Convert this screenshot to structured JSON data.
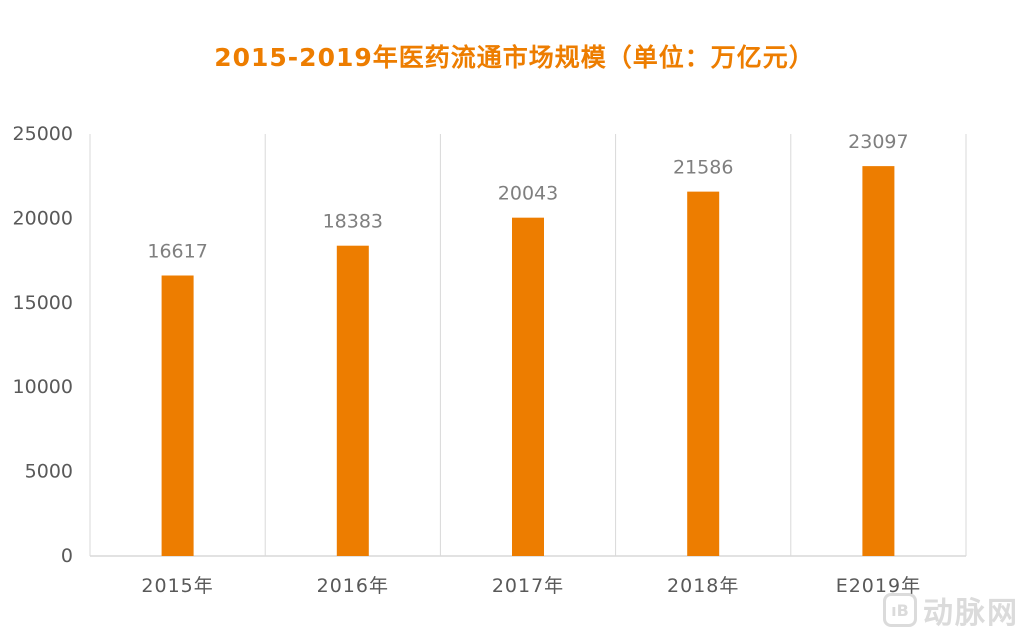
{
  "colors": {
    "accent": "#ED7D00",
    "bar": "#ED7D00",
    "gridline": "#D9D9D9",
    "axis_text": "#595959",
    "data_label": "#7F7F7F"
  },
  "watermark": {
    "logo_text": "ıB",
    "text": "动脉网"
  },
  "chart_data": {
    "type": "bar",
    "title": "2015-2019年医药流通市场规模（单位：万亿元）",
    "xlabel": "",
    "ylabel": "",
    "categories": [
      "2015年",
      "2016年",
      "2017年",
      "2018年",
      "E2019年"
    ],
    "values": [
      16617,
      18383,
      20043,
      21586,
      23097
    ],
    "data_labels": [
      "16617",
      "18383",
      "20043",
      "21586",
      "23097"
    ],
    "ylim": [
      0,
      25000
    ],
    "yticks": [
      0,
      5000,
      10000,
      15000,
      20000,
      25000
    ],
    "ytick_labels": [
      "0",
      "5000",
      "10000",
      "15000",
      "20000",
      "25000"
    ],
    "grid": "vertical",
    "legend": "none"
  }
}
